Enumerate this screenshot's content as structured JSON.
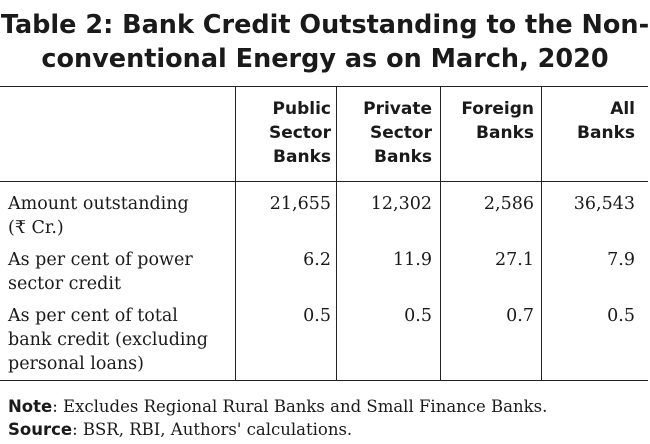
{
  "title": {
    "line1": "Table 2: Bank Credit Outstanding to the Non-",
    "line2": "conventional Energy as on March, 2020"
  },
  "table": {
    "columns": [
      {
        "lines": [
          "Public",
          "Sector",
          "Banks"
        ]
      },
      {
        "lines": [
          "Private",
          "Sector",
          "Banks"
        ]
      },
      {
        "lines": [
          "Foreign",
          "Banks"
        ]
      },
      {
        "lines": [
          "All",
          "Banks"
        ]
      }
    ],
    "rows": [
      {
        "label_lines": [
          "Amount outstanding",
          "(₹ Cr.)"
        ],
        "values": [
          "21,655",
          "12,302",
          "2,586",
          "36,543"
        ]
      },
      {
        "label_lines": [
          "As per cent of power",
          "sector credit"
        ],
        "values": [
          "6.2",
          "11.9",
          "27.1",
          "7.9"
        ]
      },
      {
        "label_lines": [
          "As per cent of total",
          "bank credit (excluding",
          "personal loans)"
        ],
        "values": [
          "0.5",
          "0.5",
          "0.7",
          "0.5"
        ]
      }
    ]
  },
  "notes": {
    "note_label": "Note",
    "note_text": ": Excludes Regional Rural Banks and Small Finance Banks.",
    "source_label": "Source",
    "source_text": ": BSR, RBI, Authors' calculations."
  }
}
